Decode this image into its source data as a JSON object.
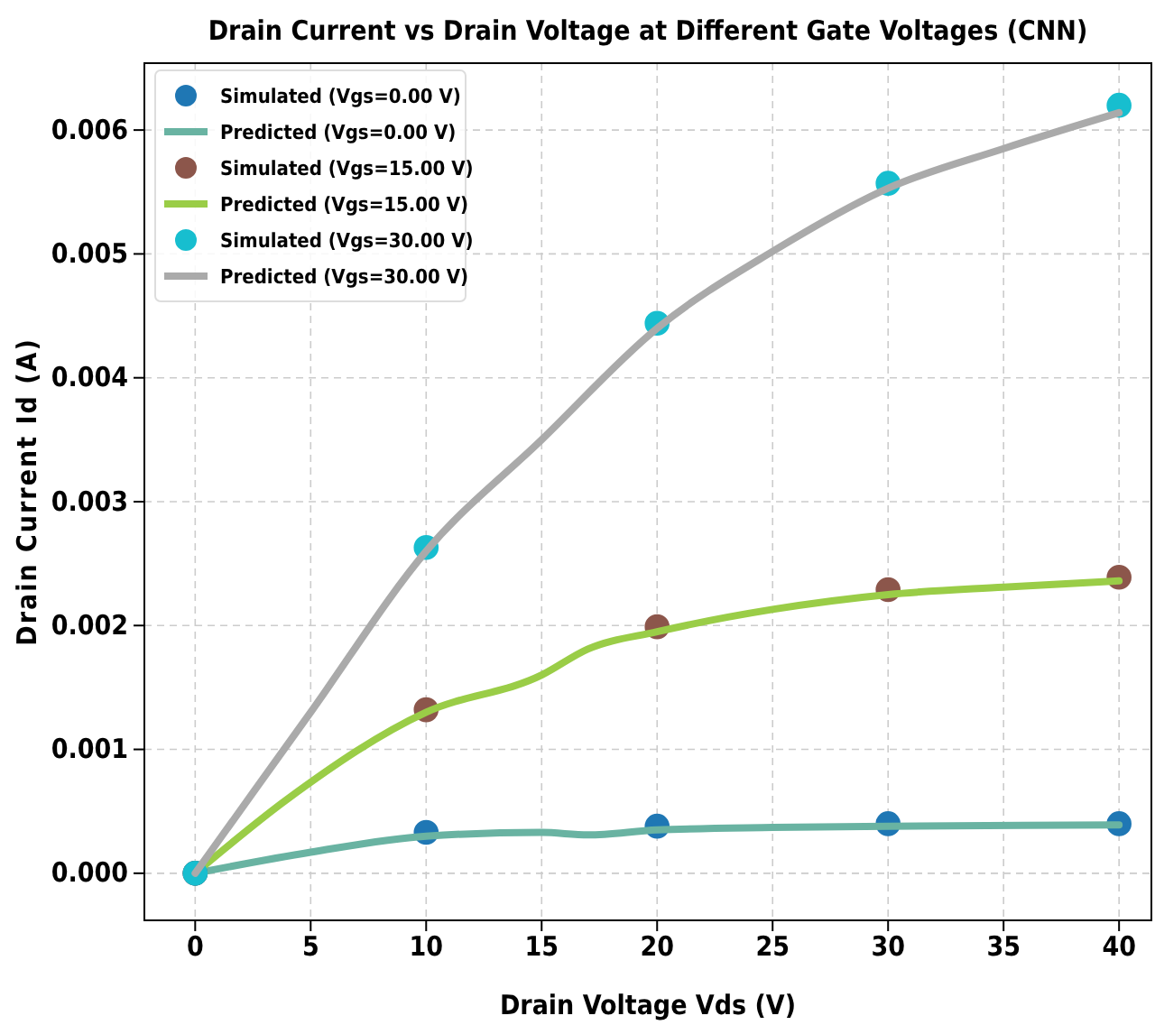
{
  "chart_data": {
    "type": "line",
    "title": "Drain Current vs Drain Voltage at Different Gate Voltages (CNN)",
    "xlabel": "Drain Voltage Vds (V)",
    "ylabel": "Drain Current Id (A)",
    "xlim": [
      -2.2,
      41.4
    ],
    "ylim": [
      -0.00038,
      0.00654
    ],
    "xticks": [
      0,
      5,
      10,
      15,
      20,
      25,
      30,
      35,
      40
    ],
    "yticks": [
      {
        "value": 0,
        "label": "0.000"
      },
      {
        "value": 0.001,
        "label": "0.001"
      },
      {
        "value": 0.002,
        "label": "0.002"
      },
      {
        "value": 0.003,
        "label": "0.003"
      },
      {
        "value": 0.004,
        "label": "0.004"
      },
      {
        "value": 0.005,
        "label": "0.005"
      },
      {
        "value": 0.006,
        "label": "0.006"
      }
    ],
    "grid": true,
    "legend": "top left",
    "series": [
      {
        "name": "Simulated (Vgs=0.00 V)",
        "type": "scatter",
        "marker": "circle",
        "color": "#1f77b4",
        "x": [
          0,
          10,
          20,
          30,
          40
        ],
        "values": [
          0,
          0.00033,
          0.00038,
          0.0004,
          0.0004
        ]
      },
      {
        "name": "Predicted (Vgs=0.00 V)",
        "color": "#69b3a2",
        "x": [
          0,
          5,
          10,
          15,
          17,
          20,
          25,
          30,
          40
        ],
        "values": [
          0,
          0.00017,
          0.0003,
          0.00033,
          0.00031,
          0.00035,
          0.00037,
          0.00038,
          0.00039
        ]
      },
      {
        "name": "Simulated (Vgs=15.00 V)",
        "type": "scatter",
        "marker": "circle",
        "color": "#8c564b",
        "x": [
          0,
          10,
          20,
          30,
          40
        ],
        "values": [
          0,
          0.00132,
          0.00199,
          0.00229,
          0.00239
        ]
      },
      {
        "name": "Predicted (Vgs=15.00 V)",
        "color": "#9acd47",
        "x": [
          0,
          4,
          10,
          15,
          17,
          20,
          25,
          30,
          35,
          40
        ],
        "values": [
          0,
          0.0006,
          0.0013,
          0.0016,
          0.00181,
          0.00195,
          0.00213,
          0.00225,
          0.00231,
          0.00236
        ]
      },
      {
        "name": "Simulated (Vgs=30.00 V)",
        "type": "scatter",
        "marker": "circle",
        "color": "#17becf",
        "x": [
          0,
          10,
          20,
          30,
          40
        ],
        "values": [
          0,
          0.00263,
          0.00444,
          0.00557,
          0.0062
        ]
      },
      {
        "name": "Predicted (Vgs=30.00 V)",
        "color": "#aaaaaa",
        "x": [
          0,
          5,
          10,
          15,
          20,
          25,
          30,
          35,
          40
        ],
        "values": [
          0,
          0.0013,
          0.0026,
          0.0035,
          0.0044,
          0.00502,
          0.00553,
          0.00585,
          0.00614
        ]
      }
    ]
  }
}
